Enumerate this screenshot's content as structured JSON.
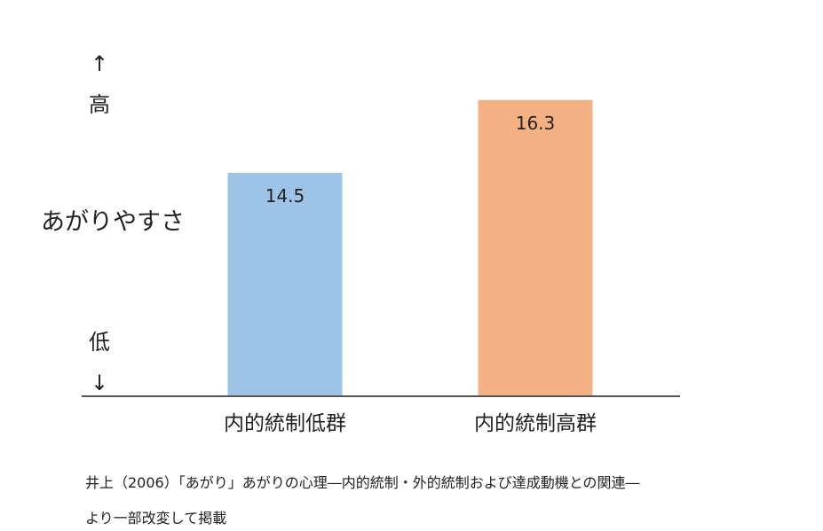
{
  "chart_data": {
    "type": "bar",
    "categories": [
      "内的統制低群",
      "内的統制高群"
    ],
    "values": [
      14.5,
      16.3
    ],
    "data_labels": [
      "14.5",
      "16.3"
    ],
    "bar_colors": [
      "#9dc3e6",
      "#f4b183"
    ],
    "ylabel": "あがりやすさ",
    "y_high_arrow": "↑",
    "y_high_label": "高",
    "y_low_label": "低",
    "y_low_arrow": "↓",
    "ylim": [
      9,
      16.8
    ]
  },
  "source": {
    "line1": "井上（2006）「あがり」あがりの心理―内的統制・外的統制および達成動機との関連―",
    "line2": "より一部改変して掲載"
  }
}
